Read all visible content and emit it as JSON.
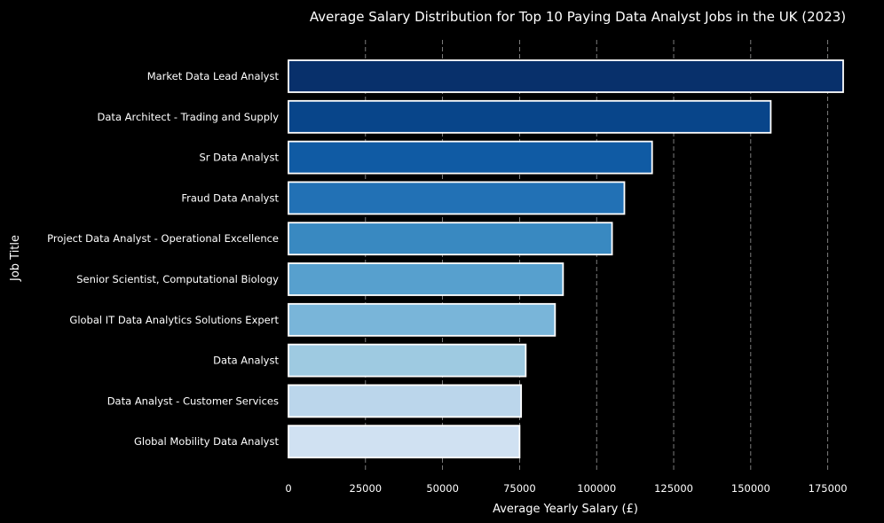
{
  "chart_data": {
    "type": "bar",
    "orientation": "horizontal",
    "title": "Average Salary Distribution for Top 10 Paying Data Analyst Jobs in the UK (2023)",
    "xlabel": "Average Yearly Salary (£)",
    "ylabel": "Job Title",
    "xlim": [
      0,
      180000
    ],
    "x_ticks": [
      0,
      25000,
      50000,
      75000,
      100000,
      125000,
      150000,
      175000
    ],
    "x_tick_labels": [
      "0",
      "25000",
      "50000",
      "75000",
      "100000",
      "125000",
      "150000",
      "175000"
    ],
    "grid": "vertical dashed",
    "legend": "none",
    "categories": [
      "Market Data Lead Analyst",
      "Data Architect - Trading and Supply",
      "Sr Data Analyst",
      "Fraud Data Analyst",
      "Project Data Analyst - Operational Excellence",
      "Senior Scientist, Computational Biology",
      "Global IT Data Analytics Solutions Expert",
      "Data Analyst",
      "Data Analyst - Customer Services",
      "Global Mobility Data Analyst"
    ],
    "values": [
      180000,
      156500,
      118000,
      109000,
      105000,
      89100,
      86500,
      77000,
      75500,
      75000
    ],
    "colors": [
      "#08306b",
      "#08458a",
      "#105ba4",
      "#2271b5",
      "#3989c1",
      "#57a0ce",
      "#79b5d9",
      "#9ecae1",
      "#bbd6eb",
      "#d0e1f2"
    ],
    "bar_edge_color": "#ffffff",
    "background": "#000000"
  }
}
